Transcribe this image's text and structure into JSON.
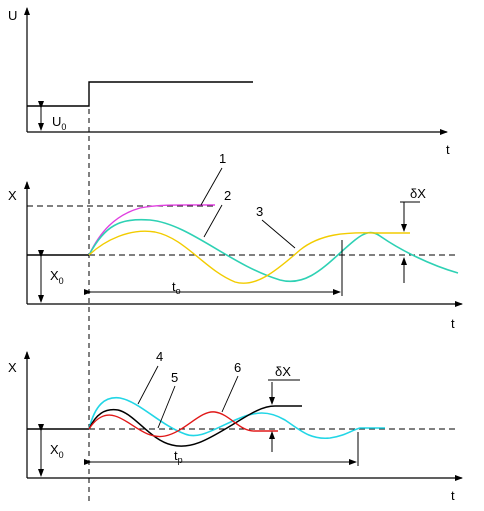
{
  "panels": {
    "input": {
      "y_axis_label": "U",
      "t_axis_label": "t",
      "level_label_main": "U",
      "level_label_sub": "0"
    },
    "middle": {
      "y_axis_label": "X",
      "t_axis_label": "t",
      "x0_main": "X",
      "x0_sub": "0",
      "curve_labels": [
        "1",
        "2",
        "3"
      ],
      "delta_label": "δX",
      "time_main": "t",
      "time_sub": "о"
    },
    "bottom": {
      "y_axis_label": "X",
      "t_axis_label": "t",
      "x0_main": "X",
      "x0_sub": "0",
      "curve_labels": [
        "4",
        "5",
        "6"
      ],
      "delta_label": "δX",
      "time_main": "t",
      "time_sub": "р"
    }
  },
  "colors": {
    "axis": "#000000",
    "curve_1": "#e040e0",
    "curve_2": "#2ed1b4",
    "curve_3": "#f2cc00",
    "curve_4": "#22d6e6",
    "curve_5": "#000000",
    "curve_6": "#e01818"
  }
}
